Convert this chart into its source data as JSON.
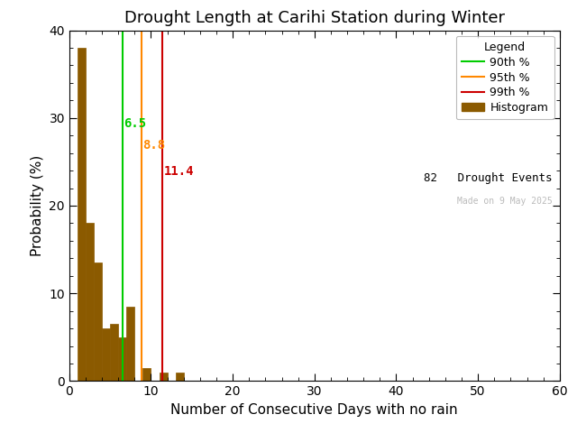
{
  "title": "Drought Length at Carihi Station during Winter",
  "xlabel": "Number of Consecutive Days with no rain",
  "ylabel": "Probability (%)",
  "xlim": [
    0,
    60
  ],
  "ylim": [
    0,
    40
  ],
  "xticks": [
    0,
    10,
    20,
    30,
    40,
    50,
    60
  ],
  "yticks": [
    0,
    10,
    20,
    30,
    40
  ],
  "bar_color": "#8B5A00",
  "bar_edgecolor": "#8B5A00",
  "background_color": "#ffffff",
  "percentile_90": 6.5,
  "percentile_95": 8.8,
  "percentile_99": 11.4,
  "percentile_90_color": "#00cc00",
  "percentile_95_color": "#ff8800",
  "percentile_99_color": "#cc0000",
  "n_events": 82,
  "watermark": "Made on 9 May 2025",
  "bin_edges": [
    1,
    2,
    3,
    4,
    5,
    6,
    7,
    8,
    9,
    10,
    11,
    12,
    13
  ],
  "probabilities": [
    38.0,
    18.0,
    13.5,
    6.0,
    6.5,
    5.0,
    8.5,
    0.0,
    1.5,
    0.0,
    1.0,
    0.0,
    1.0
  ],
  "legend_title": "Legend",
  "title_fontsize": 13,
  "axis_fontsize": 11,
  "tick_fontsize": 10,
  "annot_fontsize": 10,
  "legend_fontsize": 9,
  "watermark_fontsize": 7,
  "events_fontsize": 9
}
